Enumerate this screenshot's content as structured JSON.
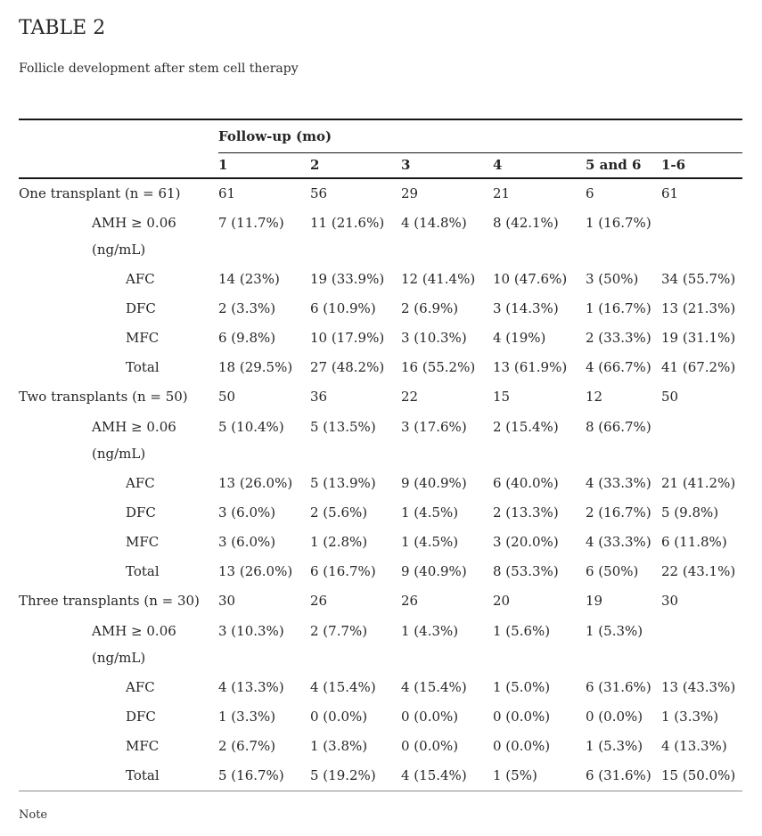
{
  "page": {
    "title": "TABLE 2",
    "subtitle": "Follicle development after stem cell therapy",
    "note": "Note"
  },
  "table": {
    "header": {
      "group_label": "Follow-up (mo)",
      "columns": [
        "1",
        "2",
        "3",
        "4",
        "5 and 6",
        "1-6"
      ]
    },
    "sections": [
      {
        "label": "One transplant (n = 61)",
        "counts": [
          "61",
          "56",
          "29",
          "21",
          "6",
          "61"
        ],
        "rows": [
          {
            "label": "AMH ≥ 0.06",
            "label2": "(ng/mL)",
            "indent": 1,
            "values": [
              "7 (11.7%)",
              "11 (21.6%)",
              "4 (14.8%)",
              "8 (42.1%)",
              "1 (16.7%)",
              ""
            ]
          },
          {
            "label": "AFC",
            "indent": 2,
            "values": [
              "14 (23%)",
              "19 (33.9%)",
              "12 (41.4%)",
              "10 (47.6%)",
              "3 (50%)",
              "34 (55.7%)"
            ]
          },
          {
            "label": "DFC",
            "indent": 2,
            "values": [
              "2 (3.3%)",
              "6 (10.9%)",
              "2 (6.9%)",
              "3 (14.3%)",
              "1 (16.7%)",
              "13 (21.3%)"
            ]
          },
          {
            "label": "MFC",
            "indent": 2,
            "values": [
              "6 (9.8%)",
              "10 (17.9%)",
              "3 (10.3%)",
              "4 (19%)",
              "2 (33.3%)",
              "19 (31.1%)"
            ]
          },
          {
            "label": "Total",
            "indent": 2,
            "values": [
              "18 (29.5%)",
              "27 (48.2%)",
              "16 (55.2%)",
              "13 (61.9%)",
              "4 (66.7%)",
              "41 (67.2%)"
            ]
          }
        ]
      },
      {
        "label": "Two transplants (n = 50)",
        "counts": [
          "50",
          "36",
          "22",
          "15",
          "12",
          "50"
        ],
        "rows": [
          {
            "label": "AMH ≥ 0.06",
            "label2": "(ng/mL)",
            "indent": 1,
            "values": [
              "5 (10.4%)",
              "5 (13.5%)",
              "3 (17.6%)",
              "2 (15.4%)",
              "8 (66.7%)",
              ""
            ]
          },
          {
            "label": "AFC",
            "indent": 2,
            "values": [
              "13 (26.0%)",
              "5 (13.9%)",
              "9 (40.9%)",
              "6 (40.0%)",
              "4 (33.3%)",
              "21 (41.2%)"
            ]
          },
          {
            "label": "DFC",
            "indent": 2,
            "values": [
              "3 (6.0%)",
              "2 (5.6%)",
              "1 (4.5%)",
              "2 (13.3%)",
              "2 (16.7%)",
              "5 (9.8%)"
            ]
          },
          {
            "label": "MFC",
            "indent": 2,
            "values": [
              "3 (6.0%)",
              "1 (2.8%)",
              "1 (4.5%)",
              "3 (20.0%)",
              "4 (33.3%)",
              "6 (11.8%)"
            ]
          },
          {
            "label": "Total",
            "indent": 2,
            "values": [
              "13 (26.0%)",
              "6 (16.7%)",
              "9 (40.9%)",
              "8 (53.3%)",
              "6 (50%)",
              "22 (43.1%)"
            ]
          }
        ]
      },
      {
        "label": "Three transplants (n = 30)",
        "counts": [
          "30",
          "26",
          "26",
          "20",
          "19",
          "30"
        ],
        "rows": [
          {
            "label": "AMH ≥ 0.06",
            "label2": "(ng/mL)",
            "indent": 1,
            "values": [
              "3 (10.3%)",
              "2 (7.7%)",
              "1 (4.3%)",
              "1 (5.6%)",
              "1 (5.3%)",
              ""
            ]
          },
          {
            "label": "AFC",
            "indent": 2,
            "values": [
              "4 (13.3%)",
              "4 (15.4%)",
              "4 (15.4%)",
              "1 (5.0%)",
              "6 (31.6%)",
              "13 (43.3%)"
            ]
          },
          {
            "label": "DFC",
            "indent": 2,
            "values": [
              "1 (3.3%)",
              "0 (0.0%)",
              "0 (0.0%)",
              "0 (0.0%)",
              "0 (0.0%)",
              "1 (3.3%)"
            ]
          },
          {
            "label": "MFC",
            "indent": 2,
            "values": [
              "2 (6.7%)",
              "1 (3.8%)",
              "0 (0.0%)",
              "0 (0.0%)",
              "1 (5.3%)",
              "4 (13.3%)"
            ]
          },
          {
            "label": "Total",
            "indent": 2,
            "values": [
              "5 (16.7%)",
              "5 (19.2%)",
              "4 (15.4%)",
              "1 (5%)",
              "6 (31.6%)",
              "15 (50.0%)"
            ]
          }
        ]
      }
    ]
  }
}
